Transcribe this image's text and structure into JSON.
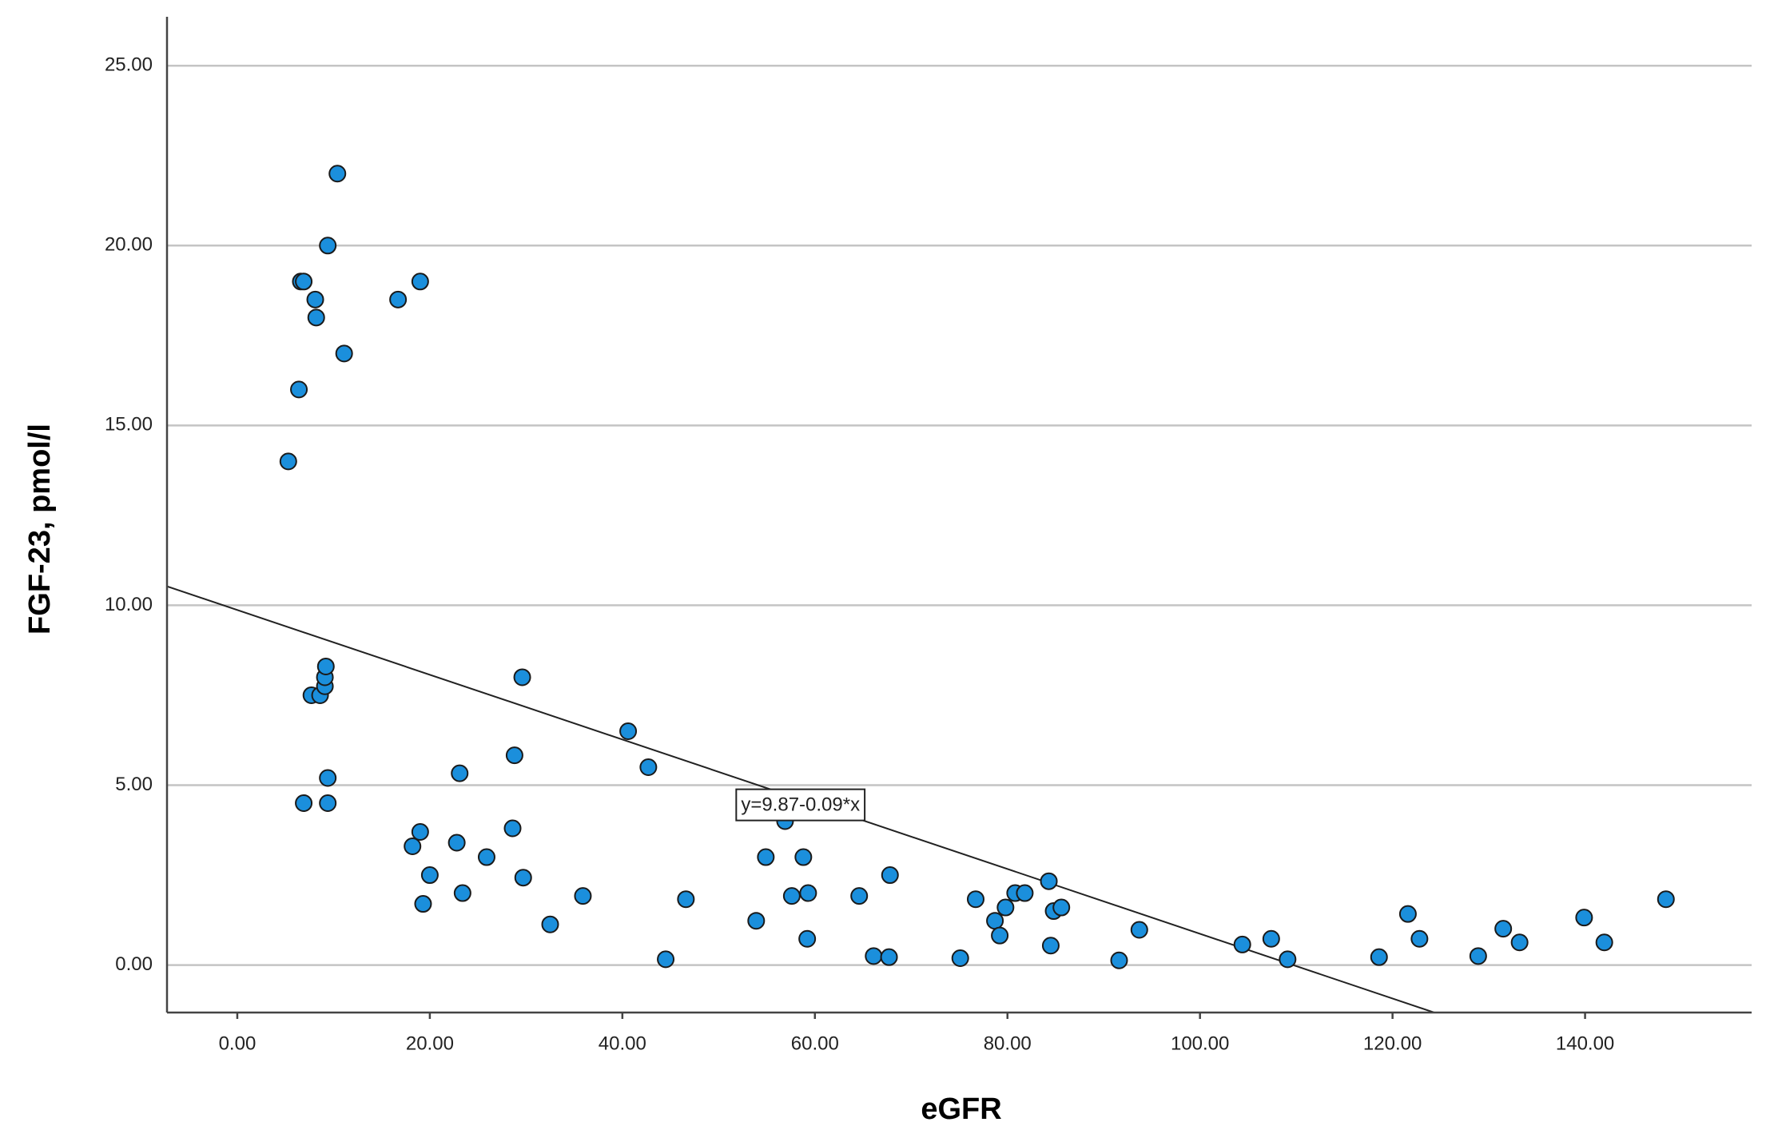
{
  "chart_data": {
    "type": "scatter",
    "x_label": "eGFR",
    "y_label": "FGF-23, pmol/l",
    "color": "#1b8fdc",
    "xlim": [
      -7.3,
      157.3
    ],
    "ylim": [
      -1.32,
      26.36
    ],
    "xticks": [
      {
        "value": 0,
        "label": "0.00"
      },
      {
        "value": 20,
        "label": "20.00"
      },
      {
        "value": 40,
        "label": "40.00"
      },
      {
        "value": 60,
        "label": "60.00"
      },
      {
        "value": 80,
        "label": "80.00"
      },
      {
        "value": 100,
        "label": "100.00"
      },
      {
        "value": 120,
        "label": "120.00"
      },
      {
        "value": 140,
        "label": "140.00"
      }
    ],
    "yticks": [
      {
        "value": 0,
        "label": "0.00"
      },
      {
        "value": 5,
        "label": "5.00"
      },
      {
        "value": 10,
        "label": "10.00"
      },
      {
        "value": 15,
        "label": "15.00"
      },
      {
        "value": 20,
        "label": "20.00"
      },
      {
        "value": 25,
        "label": "25.00"
      }
    ],
    "grid": true,
    "fit": {
      "label": "y=9.87-0.09*x",
      "intercept": 9.87,
      "slope": -0.09
    },
    "x": [
      5.3,
      6.4,
      6.6,
      6.9,
      8.1,
      8.2,
      9.4,
      10.4,
      11.1,
      16.7,
      19.0,
      7.7,
      8.6,
      9.1,
      9.1,
      9.2,
      9.4,
      6.9,
      9.4,
      29.6,
      28.8,
      28.6,
      29.7,
      23.1,
      22.8,
      23.4,
      19.0,
      18.2,
      20.0,
      19.3,
      25.9,
      32.5,
      35.9,
      40.6,
      42.7,
      44.5,
      46.6,
      53.9,
      54.9,
      56.9,
      57.6,
      58.8,
      59.3,
      59.2,
      64.6,
      66.1,
      67.8,
      67.7,
      75.1,
      76.7,
      78.7,
      79.2,
      79.8,
      80.8,
      81.8,
      84.3,
      84.8,
      85.6,
      84.5,
      91.6,
      93.7,
      104.4,
      107.4,
      109.1,
      118.6,
      121.6,
      122.8,
      128.9,
      131.5,
      133.2,
      139.9,
      142.0,
      148.4
    ],
    "values": [
      14.0,
      16.0,
      19.0,
      19.0,
      18.5,
      18.0,
      20.0,
      22.0,
      17.0,
      18.5,
      19.0,
      7.5,
      7.5,
      7.75,
      8.0,
      8.3,
      5.2,
      4.5,
      4.5,
      8.0,
      5.83,
      3.8,
      2.43,
      5.33,
      3.4,
      2.0,
      3.7,
      3.3,
      2.5,
      1.7,
      3.0,
      1.13,
      1.92,
      6.5,
      5.5,
      0.16,
      1.83,
      1.23,
      3.0,
      4.0,
      1.92,
      3.0,
      2.0,
      0.73,
      1.92,
      0.25,
      2.5,
      0.22,
      0.19,
      1.83,
      1.23,
      0.82,
      1.6,
      2.0,
      2.0,
      2.33,
      1.5,
      1.6,
      0.54,
      0.13,
      0.98,
      0.57,
      0.73,
      0.16,
      0.22,
      1.42,
      0.73,
      0.25,
      1.01,
      0.63,
      1.32,
      0.63,
      1.83
    ]
  }
}
